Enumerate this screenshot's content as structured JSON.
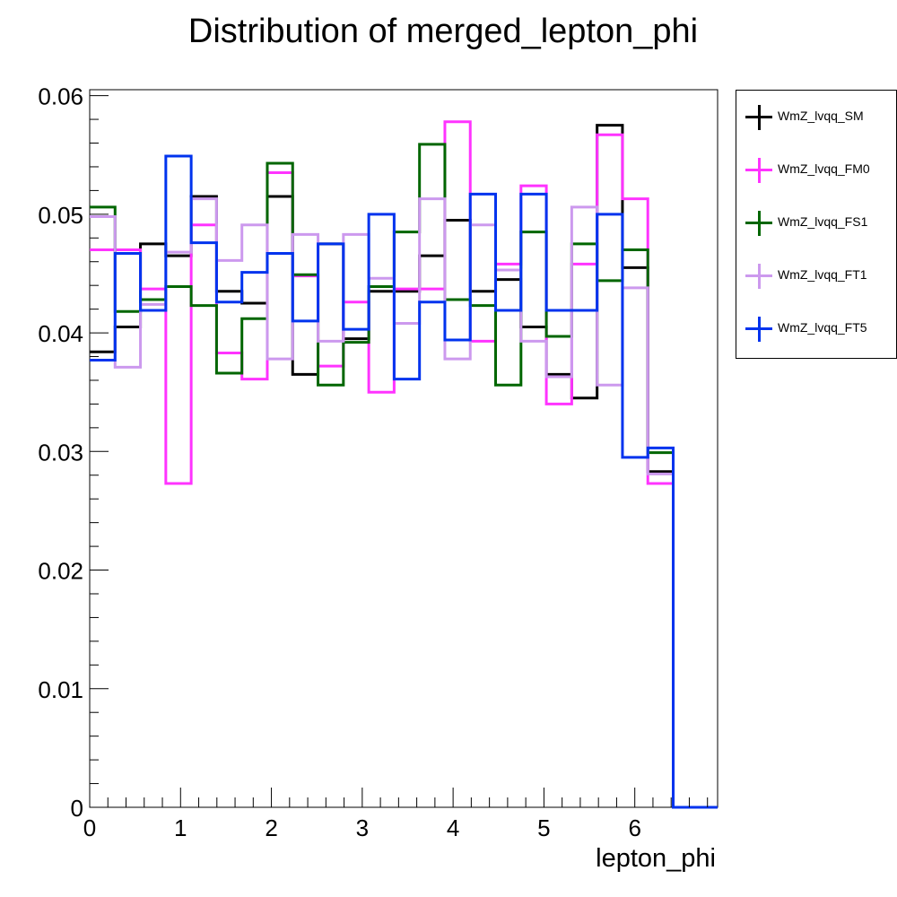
{
  "chart_data": {
    "type": "line",
    "style": "step-histogram",
    "title": "Distribution of merged_lepton_phi",
    "xlabel": "lepton_phi",
    "ylabel": "",
    "xlim": [
      0,
      6.9115
    ],
    "ylim": [
      0,
      0.0605
    ],
    "xticks": [
      0,
      1,
      2,
      3,
      4,
      5,
      6
    ],
    "yticks": [
      0,
      0.01,
      0.02,
      0.03,
      0.04,
      0.05,
      0.06
    ],
    "ytick_labels": [
      "0",
      "0.01",
      "0.02",
      "0.03",
      "0.04",
      "0.05",
      "0.06"
    ],
    "grid": false,
    "legend_position": "right",
    "bin_edges": [
      0,
      0.2793,
      0.5585,
      0.8378,
      1.117,
      1.3963,
      1.6755,
      1.9548,
      2.234,
      2.5133,
      2.7925,
      3.0718,
      3.351,
      3.6303,
      3.9095,
      4.1888,
      4.468,
      4.7473,
      5.0265,
      5.3058,
      5.585,
      5.8643,
      6.1435,
      6.4228,
      6.7021
    ],
    "series": [
      {
        "name": "WmZ_lvqq_SM",
        "color": "#000000",
        "values": [
          0.0384,
          0.0405,
          0.0475,
          0.0465,
          0.0515,
          0.0435,
          0.0425,
          0.0515,
          0.0365,
          0.0475,
          0.0395,
          0.0435,
          0.0435,
          0.0465,
          0.0495,
          0.0435,
          0.0445,
          0.0405,
          0.0365,
          0.0345,
          0.0575,
          0.0455,
          0.0283,
          0
        ]
      },
      {
        "name": "WmZ_lvqq_FM0",
        "color": "#ff33ff",
        "values": [
          0.047,
          0.047,
          0.0437,
          0.0273,
          0.0491,
          0.0383,
          0.0361,
          0.0535,
          0.0448,
          0.0372,
          0.0426,
          0.035,
          0.0437,
          0.0437,
          0.0578,
          0.0393,
          0.0458,
          0.0524,
          0.034,
          0.0458,
          0.0567,
          0.0513,
          0.0273,
          0
        ]
      },
      {
        "name": "WmZ_lvqq_FS1",
        "color": "#006600",
        "values": [
          0.0506,
          0.0418,
          0.0428,
          0.0439,
          0.0423,
          0.0366,
          0.0412,
          0.0543,
          0.0449,
          0.0356,
          0.0392,
          0.0439,
          0.0485,
          0.0559,
          0.0428,
          0.0423,
          0.0356,
          0.0485,
          0.0397,
          0.0475,
          0.0444,
          0.047,
          0.0299,
          0
        ]
      },
      {
        "name": "WmZ_lvqq_FT1",
        "color": "#cc99ee",
        "values": [
          0.0498,
          0.0371,
          0.0424,
          0.0468,
          0.0513,
          0.0461,
          0.0491,
          0.0378,
          0.0483,
          0.0393,
          0.0483,
          0.0446,
          0.0408,
          0.0513,
          0.0378,
          0.0491,
          0.0453,
          0.0393,
          0.0363,
          0.0506,
          0.0356,
          0.0438,
          0.0281,
          0
        ]
      },
      {
        "name": "WmZ_lvqq_FT5",
        "color": "#0033ee",
        "values": [
          0.0377,
          0.0467,
          0.0419,
          0.0549,
          0.0476,
          0.0426,
          0.0451,
          0.0467,
          0.041,
          0.0475,
          0.0403,
          0.05,
          0.0361,
          0.0426,
          0.0394,
          0.0517,
          0.0419,
          0.0517,
          0.0419,
          0.0419,
          0.05,
          0.0295,
          0.0303,
          0
        ]
      }
    ]
  }
}
